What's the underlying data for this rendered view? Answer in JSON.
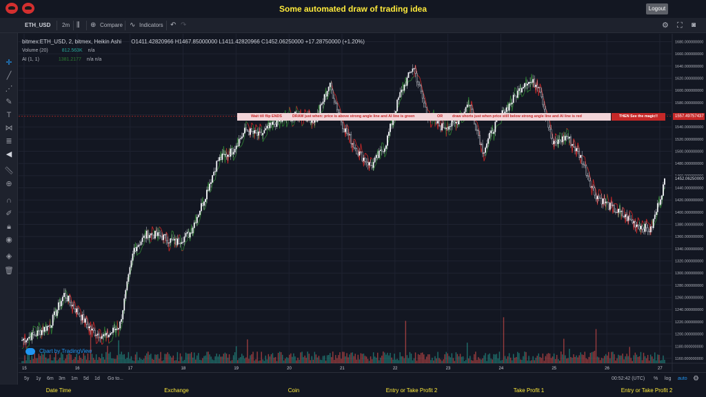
{
  "header": {
    "title": "Some automated draw of trading idea",
    "logout_label": "Logout"
  },
  "toolbar": {
    "symbol": "ETH_USD",
    "interval": "2m",
    "compare_label": "Compare",
    "indicators_label": "Indicators"
  },
  "legend": {
    "main": "bitmex:ETH_USD, 2, bitmex, Heikin Ashi",
    "ohlc": "O1411.42820966  H1467.85000000  L1411.42820966  C1452.06250000  +17.28750000 (+1.20%)",
    "volume_label": "Volume (20)",
    "volume_value": "812.563K",
    "volume_na": "n/a",
    "ai_label": "AI (1, 1)",
    "ai_value": "1381.2177",
    "ai_na": "n/a  n/a"
  },
  "annotation": {
    "part1": "Wait till flip ENDS",
    "part2": "DRAW just when:  price is above strong angle line and AI line is green",
    "part3": "OR",
    "part4": "draw shorts just when price still below strong angle line and AI line is red",
    "part5": "THEN See the magic!!"
  },
  "price_tags": {
    "level": "1557.49757437",
    "current": "1452.06250000"
  },
  "tv_badge": "Chart by TradingView",
  "range": {
    "buttons": [
      "5y",
      "1y",
      "6m",
      "3m",
      "1m",
      "5d",
      "1d"
    ],
    "goto": "Go to...",
    "time": "00:52:42 (UTC)",
    "pct": "%",
    "log": "log",
    "auto": "auto"
  },
  "footer": [
    "Date Time",
    "Exchange",
    "Coin",
    "Entry or Take Profit 2",
    "Take Profit 1",
    "Entry or Take Profit 2"
  ],
  "chart_data": {
    "type": "candlestick",
    "y_ticks": [
      "1680.000000000",
      "1660.000000000",
      "1640.000000000",
      "1620.000000000",
      "1600.000000000",
      "1580.000000000",
      "1560.000000000",
      "1540.000000000",
      "1520.000000000",
      "1500.000000000",
      "1480.000000000",
      "1460.000000000",
      "1440.000000000",
      "1420.000000000",
      "1400.000000000",
      "1380.000000000",
      "1360.000000000",
      "1340.000000000",
      "1320.000000000",
      "1300.000000000",
      "1280.000000000",
      "1260.000000000",
      "1240.000000000",
      "1220.000000000",
      "1200.000000000",
      "1180.000000000",
      "1160.000000000"
    ],
    "x_ticks": [
      "15",
      "16",
      "17",
      "18",
      "19",
      "20",
      "21",
      "22",
      "23",
      "24",
      "25",
      "26",
      "27"
    ],
    "ylim": [
      1152,
      1693
    ],
    "horizontal_line": 1557.5,
    "price_path": [
      1190,
      1200,
      1215,
      1265,
      1235,
      1205,
      1195,
      1215,
      1340,
      1365,
      1360,
      1350,
      1365,
      1420,
      1485,
      1500,
      1535,
      1525,
      1545,
      1555,
      1560,
      1550,
      1610,
      1540,
      1500,
      1475,
      1510,
      1590,
      1640,
      1560,
      1540,
      1545,
      1580,
      1500,
      1550,
      1580,
      1615,
      1610,
      1510,
      1525,
      1490,
      1430,
      1410,
      1395,
      1380,
      1370,
      1450
    ],
    "colors": {
      "up": "#ffffff",
      "down": "#ffffff",
      "ai_green": "#2e7d32",
      "ai_red": "#c62828",
      "vol_up": "#26a69a",
      "vol_down": "#ef5350"
    }
  }
}
